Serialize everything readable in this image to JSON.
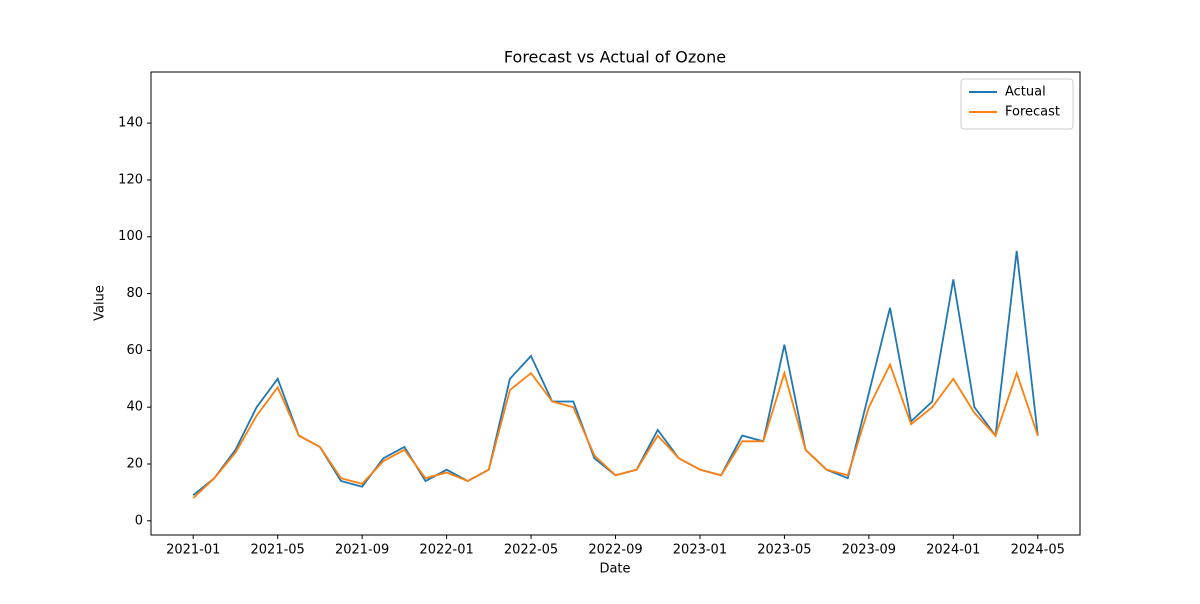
{
  "chart_data": {
    "type": "line",
    "title": "Forecast vs Actual of Ozone",
    "xlabel": "Date",
    "ylabel": "Value",
    "x": [
      "2021-01",
      "2021-02",
      "2021-03",
      "2021-04",
      "2021-05",
      "2021-06",
      "2021-07",
      "2021-08",
      "2021-09",
      "2021-10",
      "2021-11",
      "2021-12",
      "2022-01",
      "2022-02",
      "2022-03",
      "2022-04",
      "2022-05",
      "2022-06",
      "2022-07",
      "2022-08",
      "2022-09",
      "2022-10",
      "2022-11",
      "2022-12",
      "2023-01",
      "2023-02",
      "2023-03",
      "2023-04",
      "2023-05",
      "2023-06",
      "2023-07",
      "2023-08",
      "2023-09",
      "2023-10",
      "2023-11",
      "2023-12",
      "2024-01",
      "2024-02",
      "2024-03",
      "2024-04",
      "2024-05"
    ],
    "series": [
      {
        "name": "Actual",
        "color": "#1f77b4",
        "values": [
          9,
          15,
          25,
          40,
          50,
          30,
          26,
          14,
          12,
          22,
          26,
          14,
          18,
          14,
          18,
          50,
          58,
          42,
          42,
          22,
          16,
          18,
          32,
          22,
          18,
          16,
          30,
          28,
          62,
          25,
          18,
          15,
          45,
          75,
          35,
          42,
          85,
          40,
          30,
          95,
          30
        ]
      },
      {
        "name": "Forecast",
        "color": "#ff7f0e",
        "values": [
          8,
          15,
          24,
          37,
          47,
          30,
          26,
          15,
          13,
          21,
          25,
          15,
          17,
          14,
          18,
          46,
          52,
          42,
          40,
          23,
          16,
          18,
          30,
          22,
          18,
          16,
          28,
          28,
          52,
          25,
          18,
          16,
          40,
          55,
          34,
          40,
          50,
          38,
          30,
          52,
          30
        ]
      }
    ],
    "xlim": [
      "2020-11",
      "2024-07"
    ],
    "xticks": [
      "2021-01",
      "2021-05",
      "2021-09",
      "2022-01",
      "2022-05",
      "2022-09",
      "2023-01",
      "2023-05",
      "2023-09",
      "2024-01",
      "2024-05"
    ],
    "ylim": [
      -5,
      158
    ],
    "yticks": [
      0,
      20,
      40,
      60,
      80,
      100,
      120,
      140
    ],
    "legend": "upper right"
  }
}
